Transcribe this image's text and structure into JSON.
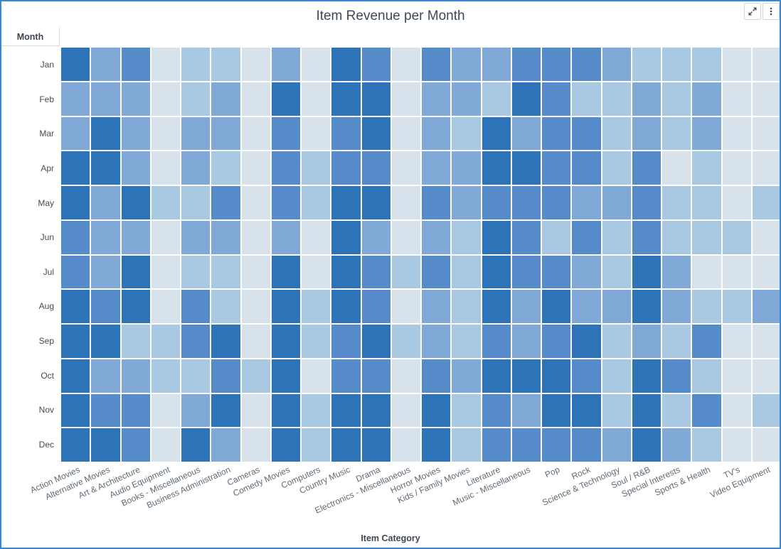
{
  "header": {
    "title": "Item Revenue per Month",
    "icons": [
      {
        "name": "expand-icon"
      },
      {
        "name": "kebab-menu-icon"
      }
    ]
  },
  "chart_data": {
    "type": "heatmap",
    "title": "Item Revenue per Month",
    "xlabel": "Item Category",
    "ylabel": "Month",
    "legend": "none",
    "value_scale_note": "relative revenue intensity per cell, 1 = lowest (pale blue) to 5 = highest (dark blue); no numeric legend shown on screen",
    "palette": {
      "1": "#d7e2ea",
      "2": "#a9c9e3",
      "3": "#80a9d8",
      "4": "#568bc9",
      "5": "#2d73b8"
    },
    "rows": [
      "Jan",
      "Feb",
      "Mar",
      "Apr",
      "May",
      "Jun",
      "Jul",
      "Aug",
      "Sep",
      "Oct",
      "Nov",
      "Dec"
    ],
    "columns": [
      "Action Movies",
      "Alternative Movies",
      "Art & Architecture",
      "Audio Equipment",
      "Books - Miscellaneous",
      "Business Administration",
      "Cameras",
      "Comedy Movies",
      "Computers",
      "Country Music",
      "Drama",
      "Electronics - Miscellaneous",
      "Horror Movies",
      "Kids / Family Movies",
      "Literature",
      "Music - Miscellaneous",
      "Pop",
      "Rock",
      "Science & Technology",
      "Soul / R&B",
      "Special Interests",
      "Sports & Health",
      "TV's",
      "Video Equipment"
    ],
    "values": [
      [
        5,
        3,
        4,
        1,
        2,
        2,
        1,
        3,
        1,
        5,
        4,
        1,
        4,
        3,
        3,
        4,
        4,
        4,
        3,
        2,
        2,
        2,
        1,
        1
      ],
      [
        3,
        3,
        3,
        1,
        2,
        3,
        1,
        5,
        1,
        5,
        5,
        1,
        3,
        3,
        2,
        5,
        4,
        2,
        2,
        3,
        2,
        3,
        1,
        1
      ],
      [
        3,
        5,
        3,
        1,
        3,
        3,
        1,
        4,
        1,
        4,
        5,
        1,
        3,
        2,
        5,
        3,
        4,
        4,
        2,
        3,
        2,
        3,
        1,
        1
      ],
      [
        5,
        5,
        3,
        1,
        3,
        2,
        1,
        4,
        2,
        4,
        4,
        1,
        3,
        3,
        5,
        5,
        4,
        4,
        2,
        4,
        1,
        2,
        1,
        1
      ],
      [
        5,
        3,
        5,
        2,
        2,
        4,
        1,
        4,
        2,
        5,
        5,
        1,
        4,
        3,
        4,
        4,
        4,
        3,
        3,
        4,
        2,
        2,
        1,
        2
      ],
      [
        4,
        3,
        3,
        1,
        3,
        3,
        1,
        3,
        1,
        5,
        3,
        1,
        3,
        2,
        5,
        4,
        2,
        4,
        2,
        4,
        2,
        2,
        2,
        1
      ],
      [
        4,
        3,
        5,
        1,
        2,
        2,
        1,
        5,
        1,
        5,
        4,
        2,
        4,
        2,
        5,
        4,
        4,
        3,
        2,
        5,
        3,
        1,
        1,
        1
      ],
      [
        5,
        4,
        5,
        1,
        4,
        2,
        1,
        5,
        2,
        5,
        4,
        1,
        3,
        2,
        5,
        3,
        5,
        3,
        3,
        5,
        3,
        2,
        2,
        3
      ],
      [
        5,
        5,
        2,
        2,
        4,
        5,
        1,
        5,
        2,
        4,
        5,
        2,
        3,
        2,
        4,
        3,
        4,
        5,
        2,
        3,
        2,
        4,
        1,
        1
      ],
      [
        5,
        3,
        3,
        2,
        2,
        4,
        2,
        5,
        1,
        4,
        4,
        1,
        4,
        3,
        5,
        5,
        5,
        4,
        2,
        5,
        4,
        2,
        1,
        1
      ],
      [
        5,
        4,
        4,
        1,
        3,
        5,
        1,
        5,
        2,
        5,
        5,
        1,
        5,
        2,
        4,
        3,
        5,
        5,
        2,
        5,
        2,
        4,
        1,
        2
      ],
      [
        5,
        5,
        4,
        1,
        5,
        3,
        1,
        5,
        2,
        5,
        5,
        1,
        5,
        2,
        4,
        4,
        4,
        4,
        3,
        5,
        3,
        2,
        1,
        1
      ]
    ]
  }
}
